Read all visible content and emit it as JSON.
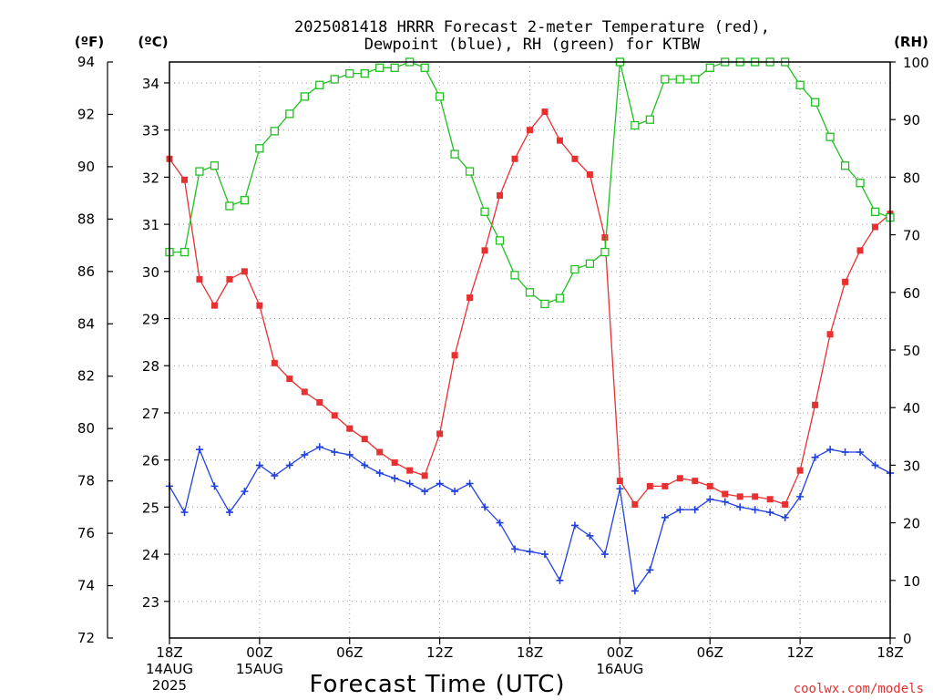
{
  "chart_data": {
    "type": "line",
    "title_lines": [
      "2025081418 HRRR Forecast 2-meter Temperature (red),",
      "Dewpoint (blue), RH (green) for KTBW"
    ],
    "xlabel": "Forecast Time (UTC)",
    "credit": "coolwx.com/models",
    "units": {
      "fahrenheit": "(ºF)",
      "celsius": "(ºC)",
      "rh": "(RH)"
    },
    "x_hours": [
      0,
      1,
      2,
      3,
      4,
      5,
      6,
      7,
      8,
      9,
      10,
      11,
      12,
      13,
      14,
      15,
      16,
      17,
      18,
      19,
      20,
      21,
      22,
      23,
      24,
      25,
      26,
      27,
      28,
      29,
      30,
      31,
      32,
      33,
      34,
      35,
      36,
      37,
      38,
      39,
      40,
      41,
      42,
      43,
      44,
      45,
      46,
      47,
      48
    ],
    "x_range": [
      0,
      48
    ],
    "x_ticks": [
      {
        "hour": 0,
        "lines": [
          "18Z",
          "14AUG",
          "2025"
        ]
      },
      {
        "hour": 6,
        "lines": [
          "00Z",
          "15AUG"
        ]
      },
      {
        "hour": 12,
        "lines": [
          "06Z"
        ]
      },
      {
        "hour": 18,
        "lines": [
          "12Z"
        ]
      },
      {
        "hour": 24,
        "lines": [
          "18Z"
        ]
      },
      {
        "hour": 30,
        "lines": [
          "00Z",
          "16AUG"
        ]
      },
      {
        "hour": 36,
        "lines": [
          "06Z"
        ]
      },
      {
        "hour": 42,
        "lines": [
          "12Z"
        ]
      },
      {
        "hour": 48,
        "lines": [
          "18Z"
        ]
      }
    ],
    "y_fahrenheit": {
      "range": [
        72,
        94
      ],
      "ticks": [
        "72",
        "74",
        "76",
        "78",
        "80",
        "82",
        "84",
        "86",
        "88",
        "90",
        "92",
        "94"
      ]
    },
    "y_celsius": {
      "ticks": [
        "23",
        "24",
        "25",
        "26",
        "27",
        "28",
        "29",
        "30",
        "31",
        "32",
        "33",
        "34"
      ]
    },
    "y_rh": {
      "range": [
        0,
        100
      ],
      "ticks": [
        "0",
        "10",
        "20",
        "30",
        "40",
        "50",
        "60",
        "70",
        "80",
        "90",
        "100"
      ]
    },
    "grid": true,
    "series": [
      {
        "key": "temperature",
        "axis": "fahrenheit",
        "color": "#e83030",
        "marker": "filled-square",
        "values": [
          90.3,
          89.5,
          85.7,
          84.7,
          85.7,
          86.0,
          84.7,
          82.5,
          81.9,
          81.4,
          81.0,
          80.5,
          80.0,
          79.6,
          79.1,
          78.7,
          78.4,
          78.2,
          79.8,
          82.8,
          85.0,
          86.8,
          88.9,
          90.3,
          91.4,
          92.1,
          91.0,
          90.3,
          89.7,
          87.3,
          78.0,
          77.1,
          77.8,
          77.8,
          78.1,
          78.0,
          77.8,
          77.5,
          77.4,
          77.4,
          77.3,
          77.1,
          78.4,
          80.9,
          83.6,
          85.6,
          86.8,
          87.7,
          88.2
        ]
      },
      {
        "key": "dewpoint",
        "axis": "fahrenheit",
        "color": "#2040e0",
        "marker": "plus",
        "values": [
          77.8,
          76.8,
          79.2,
          77.8,
          76.8,
          77.6,
          78.6,
          78.2,
          78.6,
          79.0,
          79.3,
          79.1,
          79.0,
          78.6,
          78.3,
          78.1,
          77.9,
          77.6,
          77.9,
          77.6,
          77.9,
          77.0,
          76.4,
          75.4,
          75.3,
          75.2,
          74.2,
          76.3,
          75.9,
          75.2,
          77.7,
          73.8,
          74.6,
          76.6,
          76.9,
          76.9,
          77.3,
          77.2,
          77.0,
          76.9,
          76.8,
          76.6,
          77.4,
          78.9,
          79.2,
          79.1,
          79.1,
          78.6,
          78.3
        ]
      },
      {
        "key": "rh",
        "axis": "rh",
        "color": "#20c020",
        "marker": "open-square",
        "values": [
          67,
          67,
          81,
          82,
          75,
          76,
          85,
          88,
          91,
          94,
          96,
          97,
          98,
          98,
          99,
          99,
          100,
          99,
          94,
          84,
          81,
          74,
          69,
          63,
          60,
          58,
          59,
          64,
          65,
          67,
          100,
          89,
          90,
          97,
          97,
          97,
          99,
          100,
          100,
          100,
          100,
          100,
          96,
          93,
          87,
          82,
          79,
          74,
          73
        ]
      }
    ]
  }
}
